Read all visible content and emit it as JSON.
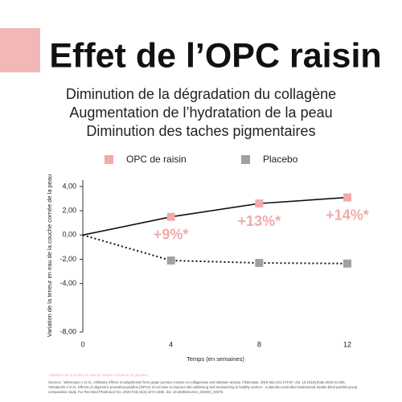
{
  "chart_data": {
    "type": "line",
    "title": "Effet de l’OPC raisin",
    "subtitle": [
      "Diminution de la dégradation du collagène",
      "Augmentation de l’hydratation de la peau",
      "Diminution des taches pigmentaires"
    ],
    "x": [
      0,
      4,
      8,
      12
    ],
    "xlim": [
      0,
      12
    ],
    "xticks": [
      0,
      4,
      8,
      12
    ],
    "ylim": [
      -8,
      4
    ],
    "yticks": [
      {
        "value": 4,
        "label": "4,00"
      },
      {
        "value": 2,
        "label": "2,00"
      },
      {
        "value": 0,
        "label": "0,00"
      },
      {
        "value": -2,
        "label": "-2,00"
      },
      {
        "value": -4,
        "label": "-4,00"
      },
      {
        "value": -8,
        "label": "-8,00"
      }
    ],
    "xlabel": "Temps (en semaines)",
    "ylabel": "Variation de la teneur en eau de la couche cornée de la peau",
    "series": [
      {
        "name": "OPC de raisin",
        "color": "#f2aaaa",
        "line_color": "#111111",
        "dash": false,
        "values": [
          0,
          1.5,
          2.6,
          3.1
        ]
      },
      {
        "name": "Placebo",
        "color": "#a0a0a0",
        "line_color": "#111111",
        "dash": true,
        "values": [
          0,
          -2.1,
          -2.3,
          -2.35
        ]
      }
    ],
    "annotations": [
      "+9%*",
      "+13%*",
      "+14%*"
    ],
    "footnote": "*Variation de la teneur en eau du stratum corneum vs placebo",
    "sources": [
      "Sources : Wittenauer J et al., Inhibitory effects of polyphenols from grape pomace extract on collagenase and elastase activity. Fitoterapia. 2015 Mar;101:179-87. doi: 10.1016/j.fitote.2015.01.005.",
      "Yamakoshi J et al., Effects of oligomeric proanthocyanidins (OPCs) of red wine to improve skin whitening and moisturizing in healthy women - a placebo-controlled randomized double-blind parallel group",
      "comparative study. Fur Res Med Pharmacol Sci. 2020 Feb;24(4):1974-1985. doi: 10.26355/eurrev_202002_20375."
    ]
  }
}
